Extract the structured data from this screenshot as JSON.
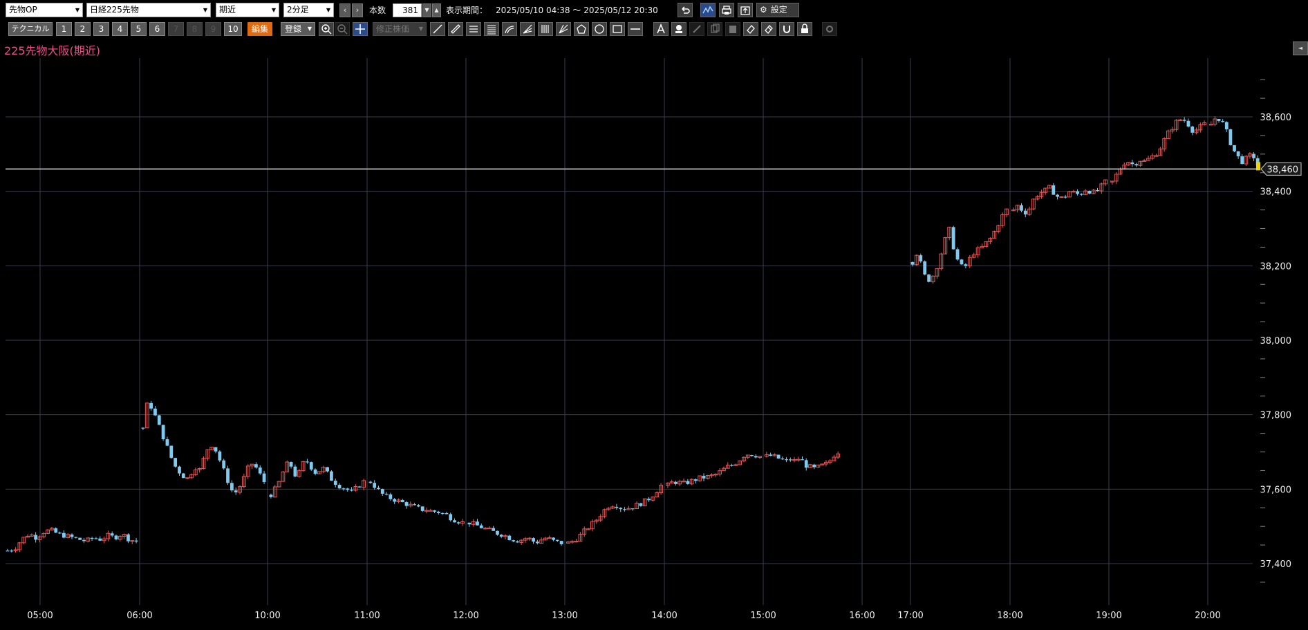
{
  "toolbar": {
    "category_select": "先物OP",
    "symbol_select": "日経225先物",
    "contract_select": "期近",
    "interval_select": "2分足",
    "count_label": "本数",
    "count_value": "381",
    "period_label": "表示期間：",
    "period_value": "2025/05/10 04:38 ～ 2025/05/12 20:30",
    "settings_label": "設定"
  },
  "toolbar2": {
    "technical_label": "テクニカル",
    "presets": [
      "1",
      "2",
      "3",
      "4",
      "5",
      "6",
      "7",
      "8",
      "9",
      "10"
    ],
    "edit_label": "編集",
    "register_label": "登録",
    "adjusted_price_label": "修正株価"
  },
  "colors": {
    "up": "#e05a5a",
    "down": "#7ecaf0",
    "grid": "#3a3e4e",
    "title": "#e8508a",
    "last_price_line": "#d8d8d8",
    "last_price_tag": "#f0d400"
  },
  "chart_data": {
    "type": "candlestick",
    "title": "225先物大阪(期近)",
    "interval": "2分足",
    "y_ticks": [
      37400,
      37600,
      37800,
      38000,
      38200,
      38400,
      38600
    ],
    "y_tick_labels": [
      "37,400",
      "37,600",
      "37,800",
      "38,000",
      "38,200",
      "38,400",
      "38,600"
    ],
    "ylim": [
      37380,
      38710
    ],
    "x_tick_labels": [
      "05:00",
      "06:00",
      "10:00",
      "11:00",
      "12:00",
      "13:00",
      "14:00",
      "15:00",
      "16:00",
      "17:00",
      "18:00",
      "19:00",
      "20:00"
    ],
    "last_price": 38460,
    "last_price_label": "38,460",
    "segments": [
      {
        "session": "05:00-06:00",
        "path": [
          37435,
          37440,
          37465,
          37480,
          37470,
          37485,
          37490,
          37480,
          37475,
          37470,
          37465,
          37460,
          37470,
          37465,
          37475,
          37470,
          37480,
          37465,
          37460
        ]
      },
      {
        "session": "06:00-10:00",
        "path": [
          37765,
          37830,
          37820,
          37790,
          37760,
          37730,
          37700,
          37670,
          37650,
          37640,
          37625,
          37640,
          37660,
          37650,
          37680,
          37710,
          37720,
          37700,
          37670,
          37640,
          37610,
          37585,
          37600,
          37620,
          37650,
          37670,
          37660,
          37640,
          37620
        ]
      },
      {
        "session": "10:00-11:00",
        "path": [
          37585,
          37600,
          37620,
          37650,
          37670,
          37660,
          37630,
          37650,
          37680,
          37670,
          37650,
          37640,
          37660,
          37650,
          37630,
          37620,
          37610,
          37605,
          37600,
          37590,
          37600,
          37610,
          37620
        ]
      },
      {
        "session": "11:00-12:00",
        "path": [
          37620,
          37605,
          37590,
          37580,
          37575,
          37570,
          37565,
          37560,
          37555,
          37550,
          37545,
          37545,
          37540,
          37540,
          37535,
          37530,
          37520,
          37515,
          37510
        ]
      },
      {
        "session": "12:00-13:00",
        "path": [
          37510,
          37505,
          37500,
          37495,
          37490,
          37485,
          37480,
          37478,
          37470,
          37465,
          37462,
          37465,
          37470,
          37460,
          37458,
          37465,
          37470,
          37462,
          37458,
          37455
        ]
      },
      {
        "session": "13:00-14:00",
        "path": [
          37455,
          37462,
          37475,
          37490,
          37505,
          37520,
          37540,
          37555,
          37560,
          37550,
          37548,
          37552,
          37558,
          37565,
          37575,
          37590,
          37610
        ]
      },
      {
        "session": "14:00-15:00",
        "path": [
          37610,
          37620,
          37618,
          37615,
          37620,
          37625,
          37630,
          37632,
          37635,
          37640,
          37650,
          37660,
          37665,
          37675,
          37690,
          37695,
          37692,
          37688
        ]
      },
      {
        "session": "15:00-15:45",
        "path": [
          37688,
          37690,
          37685,
          37680,
          37675,
          37680,
          37675,
          37685,
          37665,
          37660,
          37655,
          37660,
          37665,
          37670,
          37690,
          37700
        ]
      },
      {
        "session": "17:00-18:00",
        "path": [
          38210,
          38240,
          38180,
          38160,
          38175,
          38210,
          38260,
          38300,
          38240,
          38200,
          38195,
          38220,
          38240,
          38245,
          38260,
          38275,
          38300,
          38330,
          38350
        ]
      },
      {
        "session": "18:00-19:00",
        "path": [
          38350,
          38365,
          38340,
          38350,
          38380,
          38395,
          38400,
          38410,
          38395,
          38380,
          38385,
          38400,
          38395,
          38390,
          38405,
          38400,
          38395,
          38410,
          38425
        ]
      },
      {
        "session": "19:00-20:00",
        "path": [
          38425,
          38450,
          38475,
          38480,
          38470,
          38485,
          38480,
          38490,
          38500,
          38520,
          38550,
          38570,
          38590,
          38595,
          38580,
          38560,
          38570,
          38580
        ]
      },
      {
        "session": "20:00-20:30",
        "path": [
          38580,
          38600,
          38590,
          38560,
          38520,
          38495,
          38480,
          38490,
          38500,
          38470
        ]
      }
    ]
  }
}
